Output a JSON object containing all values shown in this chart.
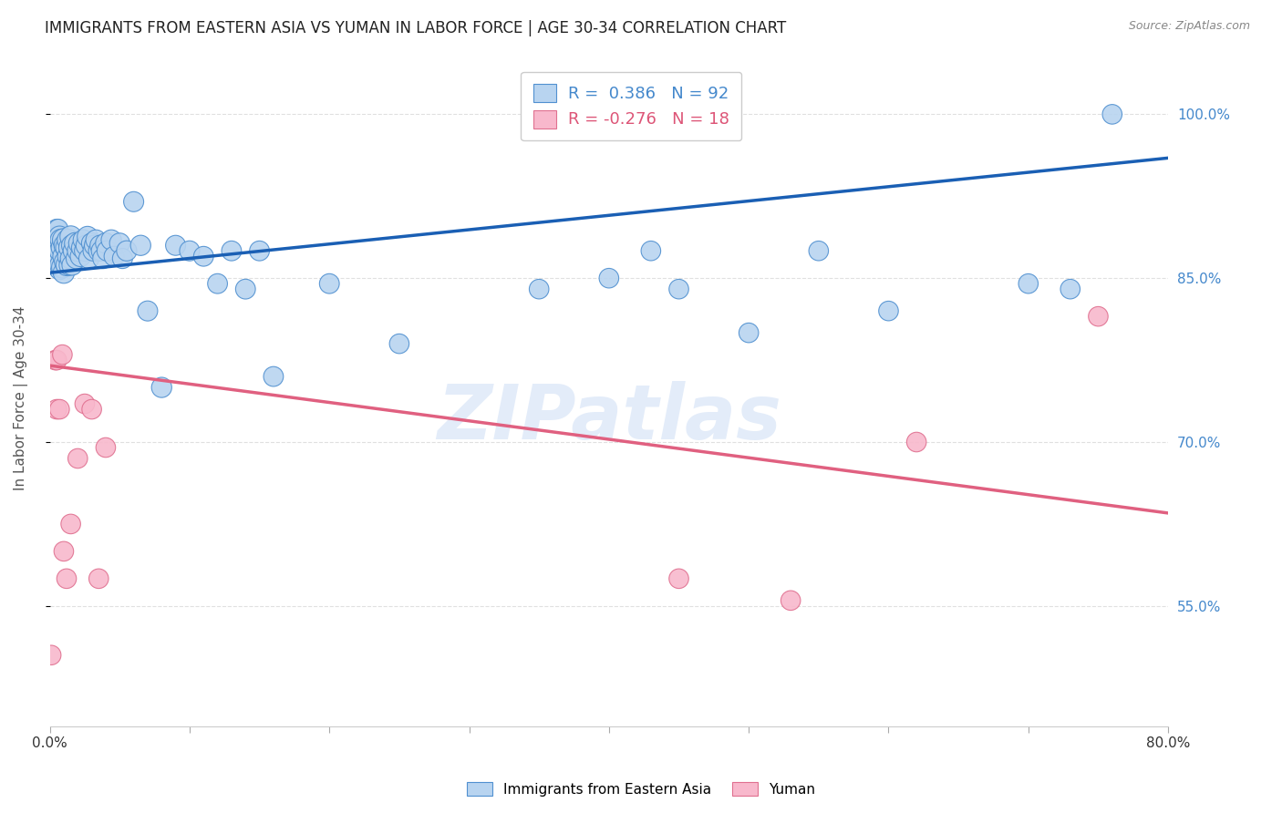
{
  "title": "IMMIGRANTS FROM EASTERN ASIA VS YUMAN IN LABOR FORCE | AGE 30-34 CORRELATION CHART",
  "source": "Source: ZipAtlas.com",
  "ylabel": "In Labor Force | Age 30-34",
  "ytick_labels": [
    "100.0%",
    "85.0%",
    "70.0%",
    "55.0%"
  ],
  "ytick_values": [
    1.0,
    0.85,
    0.7,
    0.55
  ],
  "xlim": [
    0.0,
    0.8
  ],
  "ylim": [
    0.44,
    1.04
  ],
  "watermark": "ZIPatlas",
  "legend_r_blue": "R =  0.386",
  "legend_n_blue": "N = 92",
  "legend_r_pink": "R = -0.276",
  "legend_n_pink": "N = 18",
  "legend_labels": [
    "Immigrants from Eastern Asia",
    "Yuman"
  ],
  "blue_color": "#b8d4f0",
  "blue_edge_color": "#5090d0",
  "blue_line_color": "#1a5fb4",
  "pink_color": "#f8b8cc",
  "pink_edge_color": "#e07090",
  "pink_line_color": "#e06080",
  "blue_scatter_x": [
    0.001,
    0.002,
    0.002,
    0.003,
    0.003,
    0.003,
    0.004,
    0.004,
    0.004,
    0.005,
    0.005,
    0.005,
    0.005,
    0.006,
    0.006,
    0.006,
    0.006,
    0.007,
    0.007,
    0.007,
    0.007,
    0.008,
    0.008,
    0.008,
    0.009,
    0.009,
    0.01,
    0.01,
    0.01,
    0.011,
    0.011,
    0.012,
    0.012,
    0.013,
    0.013,
    0.014,
    0.014,
    0.015,
    0.015,
    0.016,
    0.016,
    0.017,
    0.018,
    0.019,
    0.02,
    0.021,
    0.022,
    0.023,
    0.024,
    0.025,
    0.026,
    0.027,
    0.028,
    0.03,
    0.031,
    0.032,
    0.033,
    0.035,
    0.036,
    0.037,
    0.038,
    0.04,
    0.041,
    0.044,
    0.046,
    0.05,
    0.052,
    0.055,
    0.06,
    0.065,
    0.07,
    0.08,
    0.09,
    0.1,
    0.11,
    0.12,
    0.13,
    0.14,
    0.15,
    0.16,
    0.2,
    0.25,
    0.35,
    0.4,
    0.43,
    0.45,
    0.5,
    0.55,
    0.6,
    0.7,
    0.73,
    0.76
  ],
  "blue_scatter_y": [
    0.885,
    0.875,
    0.89,
    0.88,
    0.87,
    0.895,
    0.875,
    0.888,
    0.865,
    0.885,
    0.878,
    0.895,
    0.87,
    0.882,
    0.87,
    0.86,
    0.895,
    0.878,
    0.865,
    0.888,
    0.858,
    0.875,
    0.862,
    0.885,
    0.878,
    0.86,
    0.885,
    0.87,
    0.855,
    0.88,
    0.865,
    0.878,
    0.862,
    0.885,
    0.87,
    0.878,
    0.862,
    0.888,
    0.868,
    0.88,
    0.862,
    0.875,
    0.882,
    0.868,
    0.875,
    0.882,
    0.87,
    0.878,
    0.885,
    0.875,
    0.88,
    0.888,
    0.868,
    0.882,
    0.875,
    0.88,
    0.885,
    0.875,
    0.88,
    0.875,
    0.868,
    0.882,
    0.875,
    0.885,
    0.87,
    0.882,
    0.868,
    0.875,
    0.92,
    0.88,
    0.82,
    0.75,
    0.88,
    0.875,
    0.87,
    0.845,
    0.875,
    0.84,
    0.875,
    0.76,
    0.845,
    0.79,
    0.84,
    0.85,
    0.875,
    0.84,
    0.8,
    0.875,
    0.82,
    0.845,
    0.84,
    1.0
  ],
  "blue_scatter_sizes": [
    200,
    150,
    180,
    200,
    220,
    160,
    250,
    230,
    210,
    280,
    260,
    240,
    220,
    300,
    280,
    260,
    240,
    320,
    300,
    280,
    260,
    330,
    310,
    290,
    310,
    290,
    320,
    300,
    280,
    310,
    290,
    300,
    280,
    290,
    270,
    280,
    260,
    290,
    270,
    280,
    260,
    270,
    275,
    265,
    270,
    275,
    265,
    270,
    260,
    265,
    260,
    265,
    255,
    260,
    255,
    260,
    255,
    260,
    255,
    260,
    255,
    260,
    255,
    255,
    250,
    255,
    250,
    255,
    250,
    255,
    250,
    255,
    250,
    250,
    245,
    245,
    245,
    245,
    245,
    245,
    245,
    240,
    240,
    240,
    240,
    240,
    240,
    240,
    240,
    240,
    240,
    240
  ],
  "pink_scatter_x": [
    0.001,
    0.004,
    0.005,
    0.005,
    0.007,
    0.009,
    0.01,
    0.012,
    0.015,
    0.02,
    0.025,
    0.03,
    0.035,
    0.04,
    0.45,
    0.53,
    0.62,
    0.75
  ],
  "pink_scatter_y": [
    0.505,
    0.775,
    0.775,
    0.73,
    0.73,
    0.78,
    0.6,
    0.575,
    0.625,
    0.685,
    0.735,
    0.73,
    0.575,
    0.695,
    0.575,
    0.555,
    0.7,
    0.815
  ],
  "pink_scatter_sizes": [
    240,
    240,
    240,
    240,
    240,
    240,
    240,
    240,
    240,
    240,
    240,
    240,
    240,
    240,
    240,
    240,
    240,
    240
  ],
  "blue_line_x0": 0.0,
  "blue_line_y0": 0.855,
  "blue_line_x1": 0.8,
  "blue_line_y1": 0.96,
  "pink_line_x0": 0.0,
  "pink_line_y0": 0.77,
  "pink_line_x1": 0.8,
  "pink_line_y1": 0.635,
  "background_color": "#ffffff",
  "grid_color": "#e0e0e0",
  "title_color": "#222222",
  "axis_label_color": "#555555",
  "tick_color": "#4488cc"
}
